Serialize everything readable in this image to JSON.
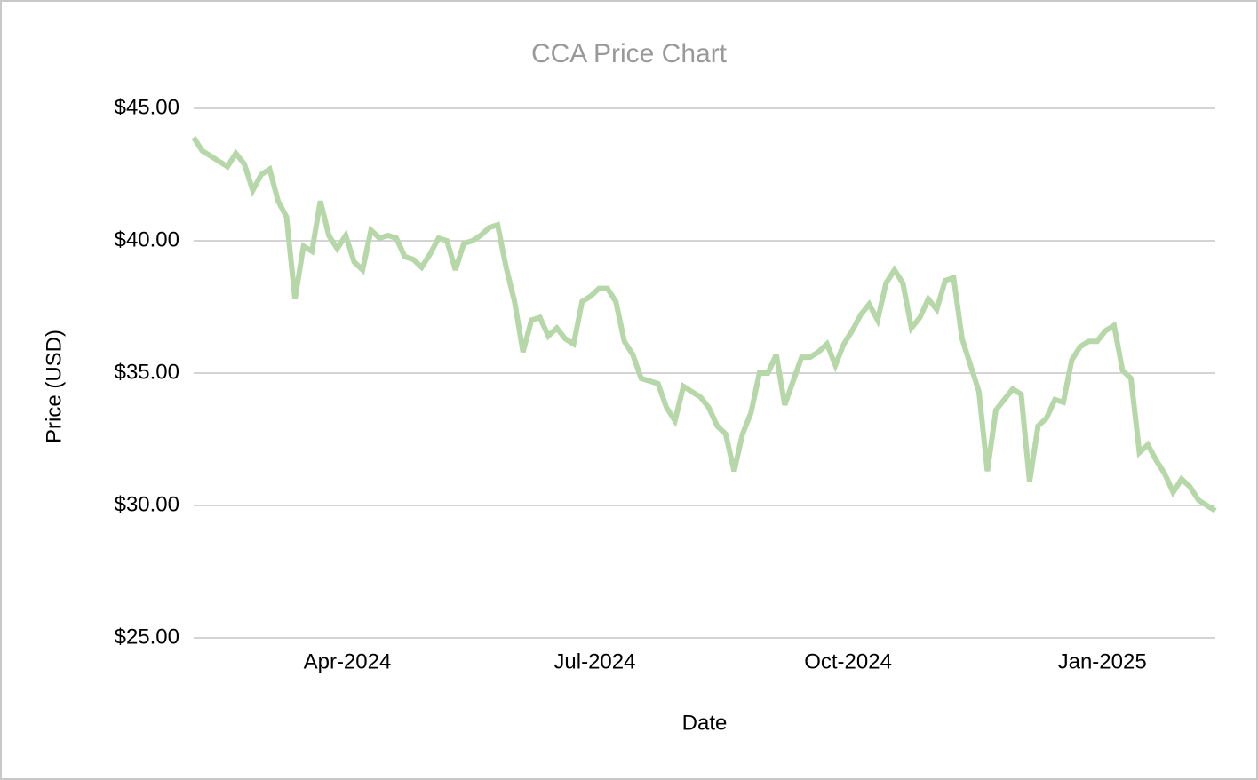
{
  "chart_data": {
    "type": "line",
    "title": "CCA Price Chart",
    "x_label": "Date",
    "y_label": "Price (USD)",
    "categories": [
      null,
      null,
      null,
      null,
      null,
      null,
      null,
      null,
      null,
      null,
      null,
      null,
      null,
      null,
      null,
      null,
      null,
      null,
      null,
      null,
      null,
      null,
      null,
      null,
      null,
      null,
      null,
      null,
      null,
      null,
      null,
      null,
      null,
      null,
      null,
      null,
      null,
      null,
      null,
      null,
      null,
      null,
      null,
      null,
      null,
      null,
      null,
      null,
      null,
      null,
      null,
      null,
      null,
      null,
      null,
      null,
      null,
      null,
      null,
      null,
      null,
      null,
      null,
      null,
      null,
      null,
      null,
      null,
      null,
      null,
      null,
      null,
      null,
      null,
      null,
      null,
      null,
      null,
      null,
      null,
      null,
      null,
      null,
      null,
      null,
      null,
      null,
      null,
      null,
      null,
      null,
      null,
      null,
      null,
      null,
      null,
      null,
      null,
      null,
      null,
      null,
      null,
      null,
      null,
      null,
      null,
      null,
      null,
      null,
      null,
      null,
      null,
      null,
      null,
      null,
      null,
      null,
      null,
      null,
      null,
      null,
      null
    ],
    "values": [
      43.9,
      43.4,
      43.2,
      43.0,
      42.8,
      43.3,
      42.9,
      41.9,
      42.5,
      42.7,
      41.5,
      40.9,
      37.8,
      39.8,
      39.6,
      41.5,
      40.2,
      39.7,
      40.2,
      39.2,
      38.9,
      40.4,
      40.1,
      40.2,
      40.1,
      39.4,
      39.3,
      39.0,
      39.5,
      40.1,
      40.0,
      38.9,
      39.9,
      40.0,
      40.2,
      40.5,
      40.6,
      39.0,
      37.7,
      35.8,
      37.0,
      37.1,
      36.4,
      36.7,
      36.3,
      36.1,
      37.7,
      37.9,
      38.2,
      38.2,
      37.7,
      36.2,
      35.7,
      34.8,
      34.7,
      34.6,
      33.7,
      33.2,
      34.5,
      34.3,
      34.1,
      33.7,
      33.0,
      32.7,
      31.3,
      32.7,
      33.5,
      35.0,
      35.0,
      35.7,
      33.8,
      34.7,
      35.6,
      35.6,
      35.8,
      36.1,
      35.3,
      36.1,
      36.6,
      37.2,
      37.6,
      37.0,
      38.4,
      38.9,
      38.4,
      36.7,
      37.1,
      37.8,
      37.4,
      38.5,
      38.6,
      36.3,
      35.3,
      34.3,
      31.3,
      33.6,
      34.0,
      34.4,
      34.2,
      30.9,
      33.0,
      33.3,
      34.0,
      33.9,
      35.5,
      36.0,
      36.2,
      36.2,
      36.6,
      36.8,
      35.1,
      34.8,
      32.0,
      32.3,
      31.7,
      31.2,
      30.5,
      31.0,
      30.7,
      30.2,
      30.0,
      29.8
    ],
    "color": "#b6d7a8",
    "xlim": [
      0,
      121
    ],
    "xticks": [
      {
        "value": 18.2,
        "label": "Apr-2024"
      },
      {
        "value": 47.5,
        "label": "Jul-2024"
      },
      {
        "value": 77.5,
        "label": "Oct-2024"
      },
      {
        "value": 107.6,
        "label": "Jan-2025"
      }
    ],
    "ylim": [
      25,
      45
    ],
    "yticks": [
      {
        "value": 25,
        "label": "$25.00"
      },
      {
        "value": 30,
        "label": "$30.00"
      },
      {
        "value": 35,
        "label": "$35.00"
      },
      {
        "value": 40,
        "label": "$40.00"
      },
      {
        "value": 45,
        "label": "$45.00"
      }
    ],
    "grid": true
  }
}
